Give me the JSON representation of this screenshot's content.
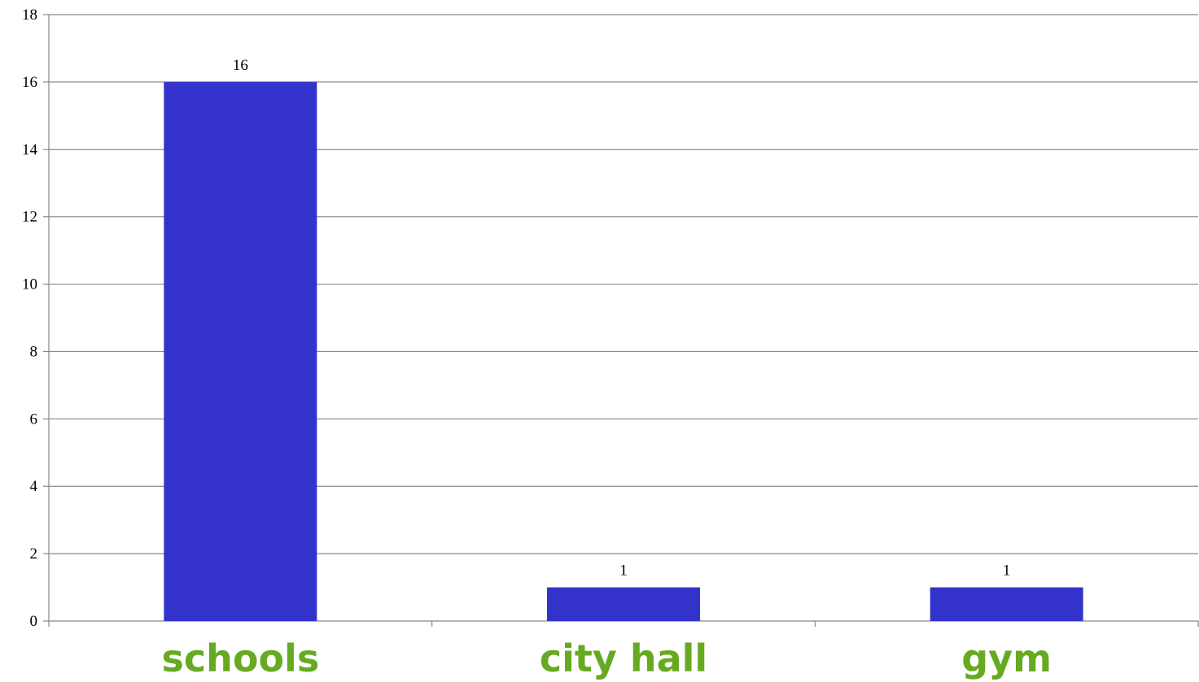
{
  "chart_data": {
    "type": "bar",
    "title": "",
    "xlabel": "",
    "ylabel": "",
    "categories": [
      "schools",
      "city hall",
      "gym"
    ],
    "values": [
      16,
      1,
      1
    ],
    "data_labels": [
      "16",
      "1",
      "1"
    ],
    "ylim": [
      0,
      18
    ],
    "yticks": [
      0,
      2,
      4,
      6,
      8,
      10,
      12,
      14,
      16,
      18
    ],
    "grid": "horizontal",
    "legend": "none",
    "bar_color": "#3333cc",
    "category_label_color": "#66aa22",
    "gridline_color": "#888888"
  }
}
